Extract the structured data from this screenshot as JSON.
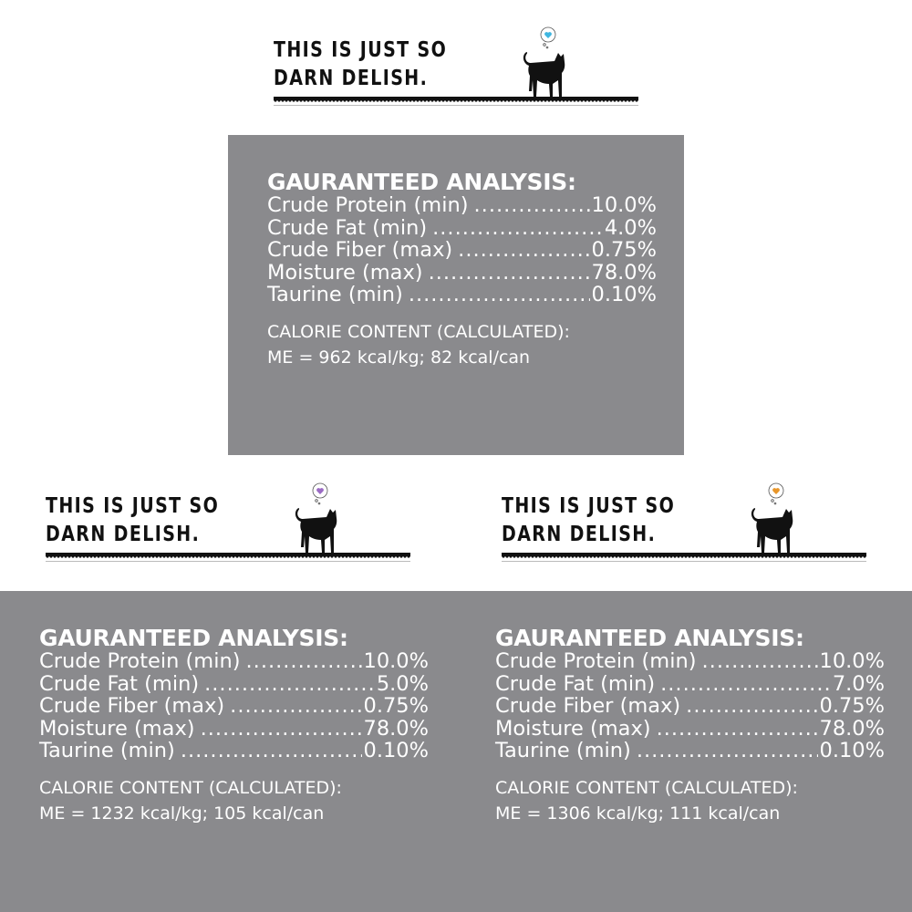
{
  "tagline_line1": "THIS IS JUST SO",
  "tagline_line2": "DARN DELISH.",
  "heart_colors": [
    "#3fb6e0",
    "#9b6bc4",
    "#e8962a"
  ],
  "panel_bg": "#8a8a8d",
  "panels": [
    {
      "title": "GAURANTEED ANALYSIS:",
      "rows": [
        {
          "label": "Crude Protein (min)",
          "value": "10.0%"
        },
        {
          "label": "Crude Fat (min)",
          "value": "4.0%"
        },
        {
          "label": "Crude Fiber (max)",
          "value": "0.75%"
        },
        {
          "label": "Moisture (max)",
          "value": "78.0%"
        },
        {
          "label": "Taurine (min)",
          "value": "0.10%"
        }
      ],
      "calorie_heading": "CALORIE CONTENT (CALCULATED):",
      "calorie_value": "ME = 962 kcal/kg; 82 kcal/can"
    },
    {
      "title": "GAURANTEED ANALYSIS:",
      "rows": [
        {
          "label": "Crude Protein (min)",
          "value": "10.0%"
        },
        {
          "label": "Crude Fat (min)",
          "value": "5.0%"
        },
        {
          "label": "Crude Fiber (max)",
          "value": "0.75%"
        },
        {
          "label": "Moisture (max)",
          "value": "78.0%"
        },
        {
          "label": "Taurine (min)",
          "value": "0.10%"
        }
      ],
      "calorie_heading": "CALORIE CONTENT (CALCULATED):",
      "calorie_value": "ME = 1232 kcal/kg; 105 kcal/can"
    },
    {
      "title": "GAURANTEED ANALYSIS:",
      "rows": [
        {
          "label": "Crude Protein (min)",
          "value": "10.0%"
        },
        {
          "label": "Crude Fat (min)",
          "value": "7.0%"
        },
        {
          "label": "Crude Fiber (max)",
          "value": "0.75%"
        },
        {
          "label": "Moisture (max)",
          "value": "78.0%"
        },
        {
          "label": "Taurine (min)",
          "value": "0.10%"
        }
      ],
      "calorie_heading": "CALORIE CONTENT (CALCULATED):",
      "calorie_value": "ME = 1306 kcal/kg; 111 kcal/can"
    }
  ]
}
